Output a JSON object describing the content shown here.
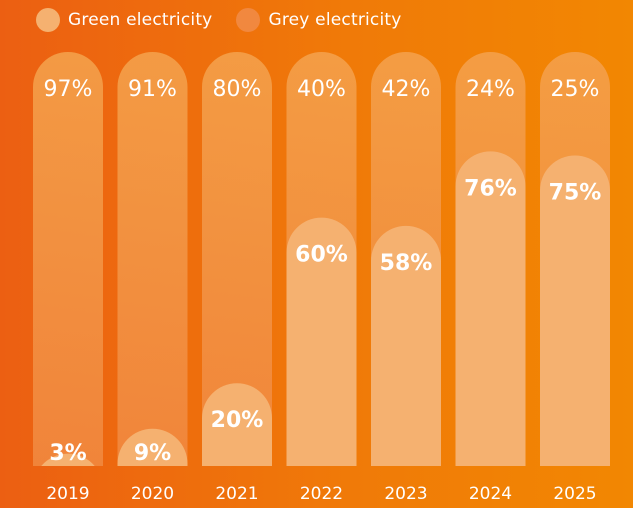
{
  "legend": {
    "green_label": "Green electricity",
    "grey_label": "Grey electricity"
  },
  "colors": {
    "green_series": "#f5b170",
    "grey_series": "#f1883f",
    "grey_top": "#f4a04a"
  },
  "chart_data": {
    "type": "bar",
    "stacked": true,
    "categories": [
      "2019",
      "2020",
      "2021",
      "2022",
      "2023",
      "2024",
      "2025"
    ],
    "series": [
      {
        "name": "Green electricity",
        "values": [
          3,
          9,
          20,
          60,
          58,
          76,
          75
        ]
      },
      {
        "name": "Grey electricity",
        "values": [
          97,
          91,
          80,
          40,
          42,
          24,
          25
        ]
      }
    ],
    "green_labels": [
      "3%",
      "9%",
      "20%",
      "60%",
      "58%",
      "76%",
      "75%"
    ],
    "grey_labels": [
      "97%",
      "91%",
      "80%",
      "40%",
      "42%",
      "24%",
      "25%"
    ],
    "ylim": [
      0,
      100
    ],
    "legend_position": "top-left",
    "grid": false
  }
}
